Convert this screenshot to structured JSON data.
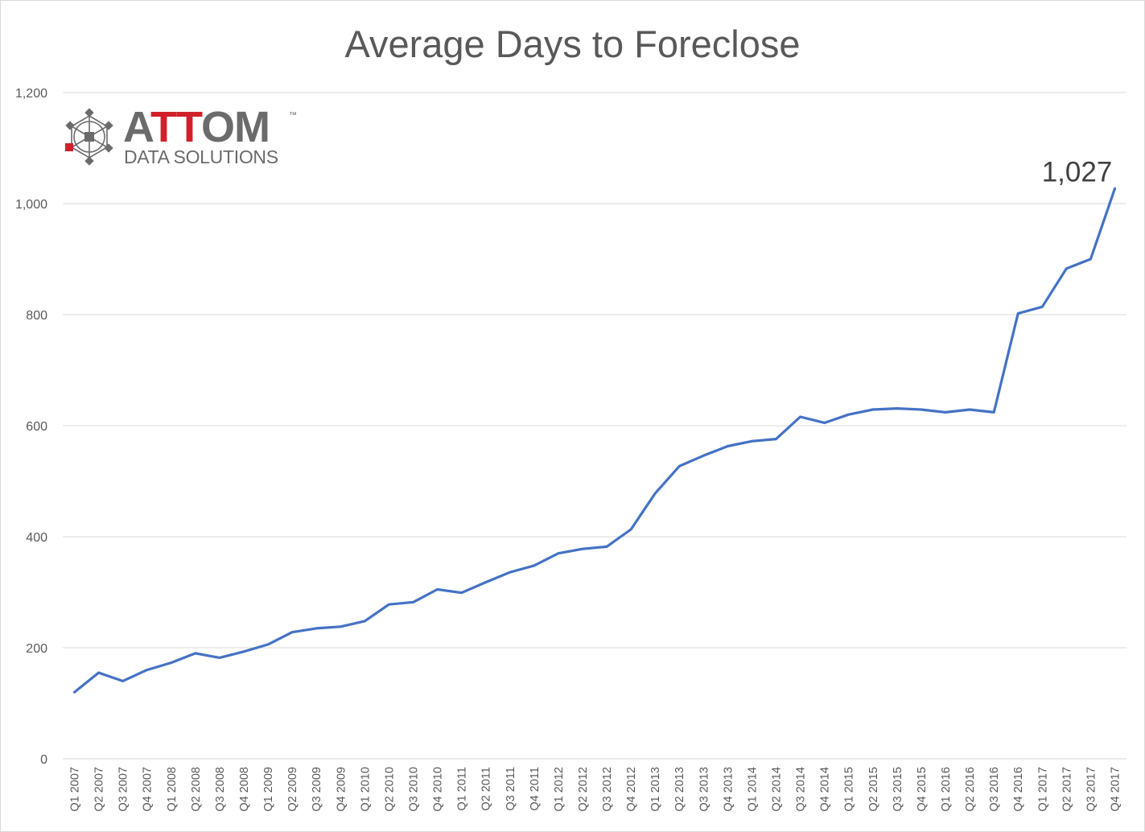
{
  "logo": {
    "brand_prefix": "A",
    "brand_red": "TT",
    "brand_suffix": "OM",
    "trademark": "™",
    "tagline": "DATA SOLUTIONS",
    "icon": "network-hexagon-icon",
    "brand_color": "#6b6b6b",
    "accent_color": "#d0212a"
  },
  "chart_data": {
    "type": "line",
    "title": "Average Days to Foreclose",
    "xlabel": "",
    "ylabel": "",
    "ylim": [
      0,
      1200
    ],
    "yticks": [
      0,
      200,
      400,
      600,
      800,
      1000,
      1200
    ],
    "ytick_labels": [
      "0",
      "200",
      "400",
      "600",
      "800",
      "1,000",
      "1,200"
    ],
    "grid": true,
    "line_color": "#4472c4",
    "categories": [
      "Q1 2007",
      "Q2 2007",
      "Q3 2007",
      "Q4 2007",
      "Q1 2008",
      "Q2 2008",
      "Q3 2008",
      "Q4 2008",
      "Q1 2009",
      "Q2 2009",
      "Q3 2009",
      "Q4 2009",
      "Q1 2010",
      "Q2 2010",
      "Q3 2010",
      "Q4 2010",
      "Q1 2011",
      "Q2 2011",
      "Q3 2011",
      "Q4 2011",
      "Q1 2012",
      "Q2 2012",
      "Q3 2012",
      "Q4 2012",
      "Q1 2013",
      "Q2 2013",
      "Q3 2013",
      "Q4 2013",
      "Q1 2014",
      "Q2 2014",
      "Q3 2014",
      "Q4 2014",
      "Q1 2015",
      "Q2 2015",
      "Q3 2015",
      "Q4 2015",
      "Q1 2016",
      "Q2 2016",
      "Q3 2016",
      "Q4 2016",
      "Q1 2017",
      "Q2 2017",
      "Q3 2017",
      "Q4 2017"
    ],
    "values": [
      120,
      155,
      140,
      160,
      173,
      190,
      182,
      193,
      206,
      228,
      235,
      238,
      248,
      278,
      282,
      305,
      299,
      318,
      336,
      348,
      370,
      378,
      382,
      413,
      478,
      527,
      546,
      563,
      572,
      576,
      616,
      605,
      620,
      629,
      631,
      629,
      624,
      629,
      624,
      802,
      814,
      883,
      900,
      1027
    ],
    "annotation": {
      "category": "Q4 2017",
      "text": "1,027"
    }
  }
}
